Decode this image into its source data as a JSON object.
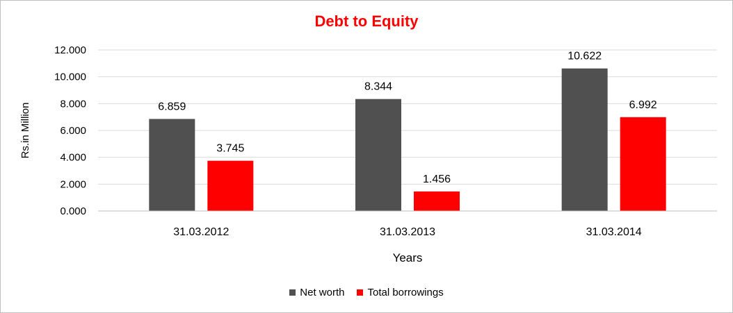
{
  "chart_data": {
    "type": "bar",
    "title": "Debt to Equity",
    "xlabel": "Years",
    "ylabel": "Rs.in Million",
    "categories": [
      "31.03.2012",
      "31.03.2013",
      "31.03.2014"
    ],
    "series": [
      {
        "name": "Net worth",
        "values": [
          6.859,
          8.344,
          10.622
        ],
        "labels": [
          "6.859",
          "8.344",
          "10.622"
        ],
        "color": "#505050"
      },
      {
        "name": "Total borrowings",
        "values": [
          3.745,
          1.456,
          6.992
        ],
        "labels": [
          "3.745",
          "1.456",
          "6.992"
        ],
        "color": "#ff0000"
      }
    ],
    "ylim": [
      0,
      12
    ],
    "yticks": [
      0,
      2,
      4,
      6,
      8,
      10,
      12
    ],
    "ytick_labels": [
      "0.000",
      "2.000",
      "4.000",
      "6.000",
      "8.000",
      "10.000",
      "12.000"
    ],
    "grid": true,
    "legend_position": "bottom"
  }
}
